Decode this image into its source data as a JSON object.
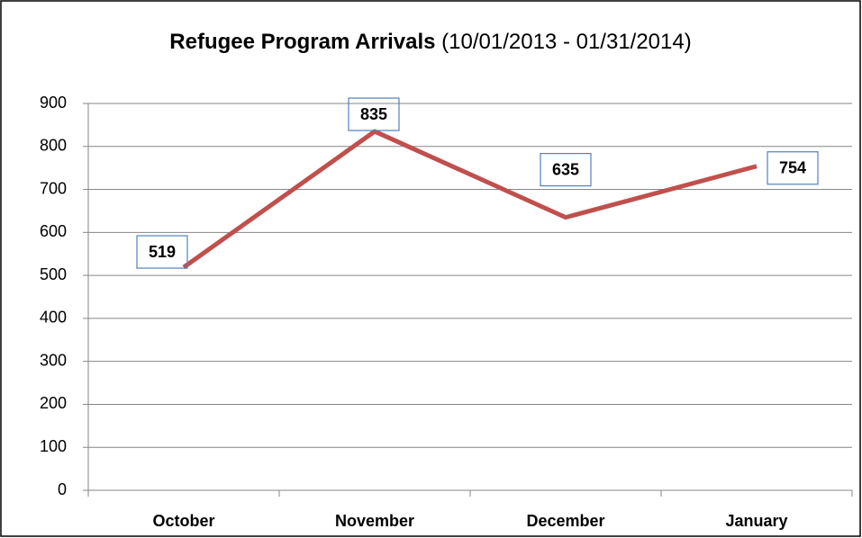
{
  "chart_data": {
    "type": "line",
    "title": "Refugee Program Arrivals",
    "subtitle": "(10/01/2013 - 01/31/2014)",
    "categories": [
      "October",
      "November",
      "December",
      "January"
    ],
    "series": [
      {
        "name": "Arrivals",
        "color": "#c0504d",
        "values": [
          519,
          835,
          635,
          754
        ]
      }
    ],
    "ylim": [
      0,
      900
    ],
    "yticks": [
      0,
      100,
      200,
      300,
      400,
      500,
      600,
      700,
      800,
      900
    ],
    "grid": true,
    "data_labels": true
  }
}
